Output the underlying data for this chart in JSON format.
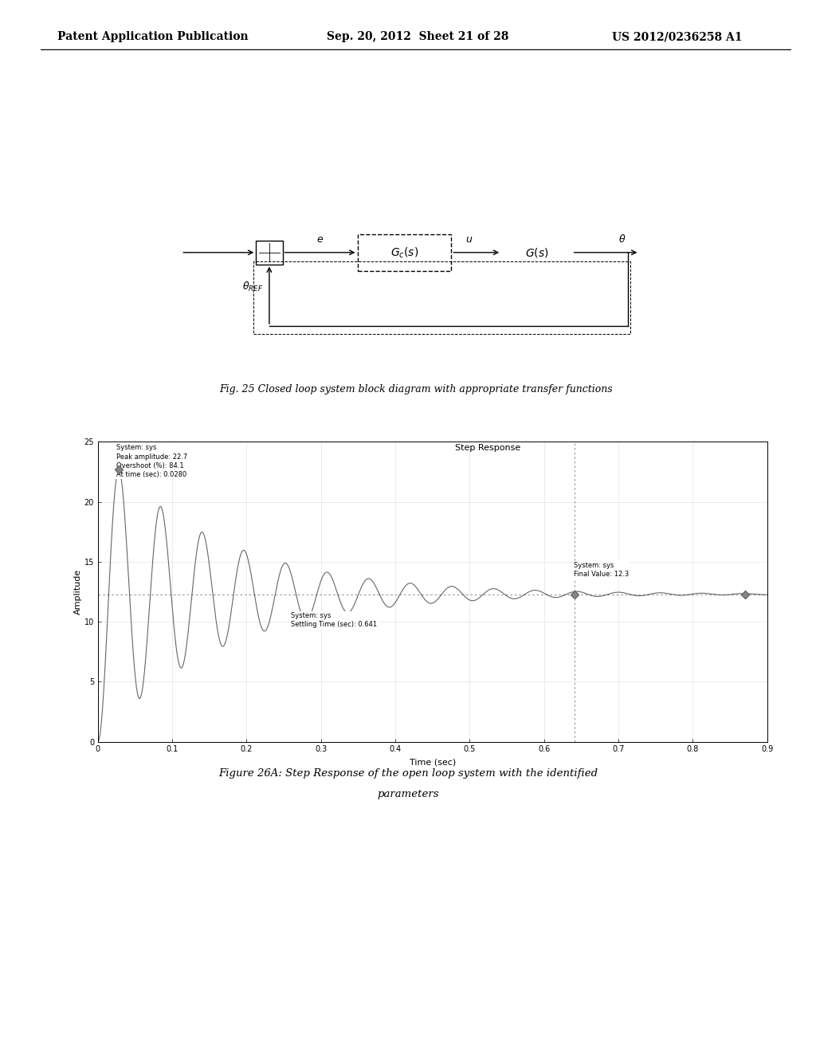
{
  "header_left": "Patent Application Publication",
  "header_center": "Sep. 20, 2012  Sheet 21 of 28",
  "header_right": "US 2012/0236258 A1",
  "fig25_caption": "Fig. 25 Closed loop system block diagram with appropriate transfer functions",
  "fig26_caption_line1": "Figure 26A: Step Response of the open loop system with the identified",
  "fig26_caption_line2": "parameters",
  "plot_title": "Step Response",
  "xlabel": "Time (sec)",
  "ylabel": "Amplitude",
  "xlim": [
    0,
    0.9
  ],
  "ylim": [
    0,
    25
  ],
  "xticks": [
    0,
    0.1,
    0.2,
    0.3,
    0.4,
    0.5,
    0.6,
    0.7,
    0.8,
    0.9
  ],
  "yticks": [
    0,
    5,
    10,
    15,
    20,
    25
  ],
  "final_value": 12.3,
  "peak_amplitude": 22.7,
  "peak_time": 0.028,
  "settling_time": 0.641,
  "bg_color": "#ffffff",
  "line_color": "#666666",
  "grid_color": "#cccccc"
}
